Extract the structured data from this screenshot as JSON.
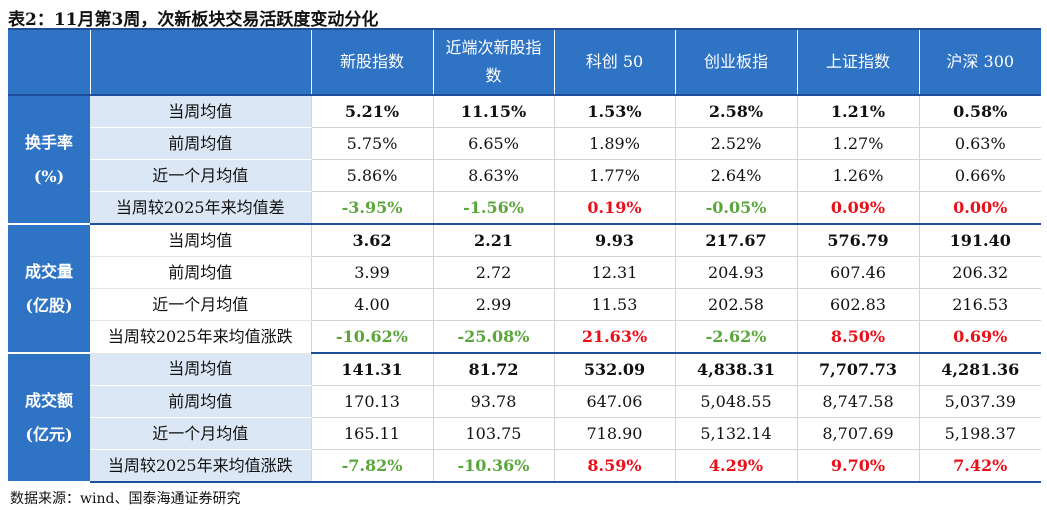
{
  "title": "表2：11月第3周，次新板块交易活跃度变动分化",
  "headers": [
    "新股指数",
    "近端次新股指数",
    "科创 50",
    "创业板指",
    "上证指数",
    "沪深 300"
  ],
  "groups": [
    {
      "name_line1": "换手率",
      "name_line2": "(%)",
      "rows": [
        {
          "label": "当周均值",
          "values": [
            "5.21%",
            "11.15%",
            "1.53%",
            "2.58%",
            "1.21%",
            "0.58%"
          ]
        },
        {
          "label": "前周均值",
          "values": [
            "5.75%",
            "6.65%",
            "1.89%",
            "2.52%",
            "1.27%",
            "0.63%"
          ]
        },
        {
          "label": "近一个月均值",
          "values": [
            "5.86%",
            "8.63%",
            "1.77%",
            "2.64%",
            "1.26%",
            "0.66%"
          ]
        },
        {
          "label": "当周较2025年来均值差",
          "values": [
            "-3.95%",
            "-1.56%",
            "0.19%",
            "-0.05%",
            "0.09%",
            "0.00%"
          ]
        }
      ]
    },
    {
      "name_line1": "成交量",
      "name_line2": "(亿股)",
      "rows": [
        {
          "label": "当周均值",
          "values": [
            "3.62",
            "2.21",
            "9.93",
            "217.67",
            "576.79",
            "191.40"
          ]
        },
        {
          "label": "前周均值",
          "values": [
            "3.99",
            "2.72",
            "12.31",
            "204.93",
            "607.46",
            "206.32"
          ]
        },
        {
          "label": "近一个月均值",
          "values": [
            "4.00",
            "2.99",
            "11.53",
            "202.58",
            "602.83",
            "216.53"
          ]
        },
        {
          "label": "当周较2025年来均值涨跌",
          "values": [
            "-10.62%",
            "-25.08%",
            "21.63%",
            "-2.62%",
            "8.50%",
            "0.69%"
          ]
        }
      ]
    },
    {
      "name_line1": "成交额",
      "name_line2": "(亿元)",
      "rows": [
        {
          "label": "当周均值",
          "values": [
            "141.31",
            "81.72",
            "532.09",
            "4,838.31",
            "7,707.73",
            "4,281.36"
          ]
        },
        {
          "label": "前周均值",
          "values": [
            "170.13",
            "93.78",
            "647.06",
            "5,048.55",
            "8,747.58",
            "5,037.39"
          ]
        },
        {
          "label": "近一个月均值",
          "values": [
            "165.11",
            "103.75",
            "718.90",
            "5,132.14",
            "8,707.69",
            "5,198.37"
          ]
        },
        {
          "label": "当周较2025年来均值涨跌",
          "values": [
            "-7.82%",
            "-10.36%",
            "8.59%",
            "4.29%",
            "9.70%",
            "7.42%"
          ]
        }
      ]
    }
  ],
  "colors": {
    "positive": "#e8111a",
    "negative": "#5aa63c",
    "header": "#2f73c5"
  },
  "source": "数据来源：wind、国泰海通证券研究"
}
